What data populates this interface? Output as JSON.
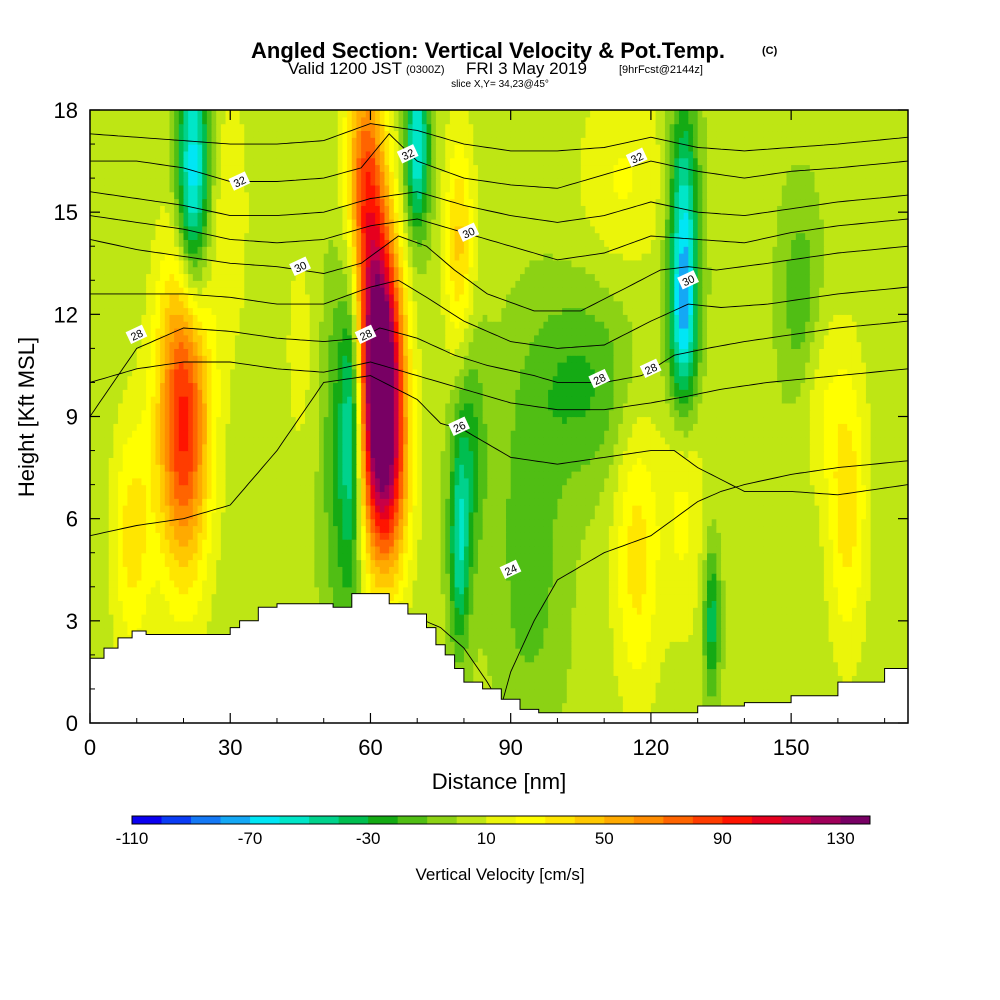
{
  "chart_data": {
    "type": "heatmap",
    "title": "Angled Section: Vertical Velocity & Pot.Temp.",
    "title_unit": "(C)",
    "subtitle_main_a": "Valid 1200 JST",
    "subtitle_z": "(0300Z)",
    "subtitle_main_b": "FRI 3 May 2019",
    "subtitle_fcst": "[9hrFcst@2144z]",
    "slice": "slice X,Y= 34,23@45°",
    "xlabel": "Distance [nm]",
    "ylabel": "Height [Kft MSL]",
    "xlim": [
      0,
      175
    ],
    "ylim": [
      0,
      18
    ],
    "x_ticks": [
      "0",
      "30",
      "60",
      "90",
      "120",
      "150"
    ],
    "x_tick_values": [
      0,
      30,
      60,
      90,
      120,
      150
    ],
    "y_ticks": [
      "0",
      "3",
      "6",
      "9",
      "12",
      "15",
      "18"
    ],
    "y_tick_values": [
      0,
      3,
      6,
      9,
      12,
      15,
      18
    ],
    "colorbar": {
      "label": "Vertical Velocity [cm/s]",
      "levels": [
        -110,
        -100,
        -90,
        -80,
        -70,
        -60,
        -50,
        -40,
        -30,
        -20,
        -10,
        0,
        10,
        20,
        30,
        40,
        50,
        60,
        70,
        80,
        90,
        100,
        110,
        120,
        130,
        140
      ],
      "tick_labels": [
        "-110",
        "-70",
        "-30",
        "10",
        "50",
        "90",
        "130"
      ],
      "tick_values": [
        -110,
        -70,
        -30,
        10,
        50,
        90,
        130
      ],
      "colors": [
        "#0a00f0",
        "#0a3cf5",
        "#1478f5",
        "#14a8f5",
        "#00e6f5",
        "#00e6c8",
        "#00d28c",
        "#00be50",
        "#14aa14",
        "#50be14",
        "#8cd214",
        "#bee614",
        "#ebf50a",
        "#ffff00",
        "#ffe600",
        "#ffc800",
        "#ffaa00",
        "#ff8c00",
        "#ff6400",
        "#ff3c00",
        "#ff1400",
        "#e6001e",
        "#c80046",
        "#a0005a",
        "#780064"
      ]
    },
    "velocity_features": [
      {
        "x": 20,
        "z": 9.0,
        "peak": 92,
        "sx": 4.0,
        "sz": 3.3
      },
      {
        "x": 9,
        "z": 5.5,
        "peak": 32,
        "sx": 3.0,
        "sz": 2.5
      },
      {
        "x": 30,
        "z": 15.0,
        "peak": 14,
        "sx": 3.0,
        "sz": 3.0
      },
      {
        "x": 62,
        "z": 11.0,
        "peak": 132,
        "sx": 3.2,
        "sz": 2.6
      },
      {
        "x": 63,
        "z": 7.5,
        "peak": 95,
        "sx": 3.5,
        "sz": 2.5
      },
      {
        "x": 59,
        "z": 16.0,
        "peak": 75,
        "sx": 3.0,
        "sz": 2.5
      },
      {
        "x": 79,
        "z": 14.0,
        "peak": 40,
        "sx": 2.2,
        "sz": 2.4
      },
      {
        "x": 114,
        "z": 16.0,
        "peak": 18,
        "sx": 7.0,
        "sz": 2.0
      },
      {
        "x": 117,
        "z": 5.0,
        "peak": 32,
        "sx": 3.5,
        "sz": 3.0
      },
      {
        "x": 127,
        "z": 7.0,
        "peak": 22,
        "sx": 3.0,
        "sz": 3.0
      },
      {
        "x": 162,
        "z": 6.5,
        "peak": 34,
        "sx": 3.0,
        "sz": 3.0
      },
      {
        "x": 156,
        "z": 9.5,
        "peak": 14,
        "sx": 3.0,
        "sz": 2.0
      },
      {
        "x": 45,
        "z": 11.0,
        "peak": 10,
        "sx": 3.0,
        "sz": 3.0
      },
      {
        "x": 22,
        "z": 16.0,
        "peak": -75,
        "sx": 2.4,
        "sz": 2.6
      },
      {
        "x": 54,
        "z": 8.0,
        "peak": -30,
        "sx": 3.0,
        "sz": 4.0
      },
      {
        "x": 56,
        "z": 9.0,
        "peak": -45,
        "sx": 1.5,
        "sz": 3.0
      },
      {
        "x": 70,
        "z": 17.0,
        "peak": -65,
        "sx": 1.8,
        "sz": 1.8
      },
      {
        "x": 79,
        "z": 5.0,
        "peak": -45,
        "sx": 1.5,
        "sz": 2.0
      },
      {
        "x": 81,
        "z": 8.0,
        "peak": -30,
        "sx": 2.5,
        "sz": 2.5
      },
      {
        "x": 94,
        "z": 5.0,
        "peak": -20,
        "sx": 5.0,
        "sz": 3.5
      },
      {
        "x": 105,
        "z": 10.0,
        "peak": -25,
        "sx": 8.0,
        "sz": 2.0
      },
      {
        "x": 127,
        "z": 12.0,
        "peak": -80,
        "sx": 2.2,
        "sz": 2.2
      },
      {
        "x": 127,
        "z": 16.0,
        "peak": -40,
        "sx": 2.2,
        "sz": 2.0
      },
      {
        "x": 133,
        "z": 3.0,
        "peak": -40,
        "sx": 1.2,
        "sz": 1.5
      },
      {
        "x": 152,
        "z": 12.5,
        "peak": -22,
        "sx": 3.0,
        "sz": 2.0
      }
    ],
    "terrain": {
      "x": [
        0,
        3,
        6,
        9,
        12,
        16,
        20,
        24,
        28,
        30,
        32,
        36,
        40,
        44,
        48,
        52,
        56,
        60,
        64,
        68,
        72,
        74,
        76,
        78,
        80,
        84,
        88,
        92,
        96,
        100,
        110,
        120,
        130,
        140,
        150,
        160,
        170,
        175
      ],
      "z": [
        1.9,
        2.2,
        2.5,
        2.7,
        2.6,
        2.6,
        2.6,
        2.6,
        2.6,
        2.8,
        3.0,
        3.4,
        3.5,
        3.5,
        3.5,
        3.4,
        3.8,
        3.8,
        3.5,
        3.2,
        2.8,
        2.3,
        2.0,
        1.6,
        1.2,
        1.0,
        0.7,
        0.4,
        0.3,
        0.3,
        0.3,
        0.3,
        0.5,
        0.6,
        0.8,
        1.2,
        1.6,
        1.6
      ]
    },
    "theta_contours": [
      {
        "label": "24",
        "x": [
          0,
          10,
          20,
          30,
          40,
          50,
          60,
          70,
          75,
          80,
          85,
          88,
          90,
          95,
          100,
          110,
          120,
          125,
          130,
          135,
          140,
          150,
          160,
          175
        ],
        "z": [
          1.5,
          2.0,
          2.3,
          2.6,
          2.8,
          3.0,
          3.2,
          3.1,
          2.8,
          2.2,
          1.2,
          0.5,
          1.5,
          3.0,
          4.2,
          5.0,
          5.5,
          6.0,
          6.5,
          6.8,
          7.0,
          7.3,
          7.5,
          7.7
        ],
        "lx": [
          90
        ],
        "lz": [
          4.5
        ]
      },
      {
        "label": "26",
        "x": [
          0,
          10,
          20,
          30,
          40,
          50,
          60,
          70,
          75,
          80,
          85,
          90,
          100,
          110,
          120,
          125,
          130,
          140,
          150,
          160,
          175
        ],
        "z": [
          5.5,
          5.8,
          6.0,
          6.4,
          8.0,
          10.0,
          10.2,
          9.5,
          8.8,
          8.6,
          8.2,
          7.8,
          7.6,
          7.8,
          8.0,
          8.0,
          7.5,
          6.8,
          6.8,
          6.7,
          7.0
        ],
        "lx": [
          79
        ],
        "lz": [
          8.7
        ]
      },
      {
        "label": "28",
        "x": [
          0,
          10,
          20,
          30,
          40,
          50,
          58,
          62,
          70,
          78,
          85,
          95,
          100,
          110,
          118,
          125,
          132,
          140,
          150,
          160,
          175
        ],
        "z": [
          9.0,
          11.0,
          11.6,
          11.5,
          11.3,
          11.2,
          11.3,
          11.6,
          11.3,
          10.8,
          10.5,
          10.2,
          10.0,
          10.0,
          10.2,
          10.8,
          11.0,
          11.2,
          11.4,
          11.6,
          11.8
        ],
        "lx": [
          10,
          59,
          109,
          120
        ],
        "lz": [
          11.4,
          11.4,
          10.1,
          10.4
        ]
      },
      {
        "label": "30",
        "x": [
          0,
          10,
          20,
          30,
          40,
          50,
          58,
          66,
          72,
          78,
          85,
          95,
          105,
          115,
          122,
          128,
          134,
          145,
          160,
          175
        ],
        "z": [
          14.2,
          13.9,
          13.7,
          13.5,
          13.4,
          13.2,
          13.5,
          14.3,
          14.0,
          13.3,
          12.6,
          12.1,
          12.1,
          12.8,
          13.3,
          13.4,
          13.3,
          13.5,
          13.8,
          14.0
        ],
        "lx": [
          45,
          81,
          128
        ],
        "lz": [
          13.4,
          14.4,
          13.0
        ]
      },
      {
        "label": "32",
        "x": [
          0,
          10,
          20,
          30,
          40,
          50,
          58,
          64,
          70,
          80,
          90,
          100,
          110,
          120,
          130,
          140,
          150,
          160,
          175
        ],
        "z": [
          16.5,
          16.5,
          16.3,
          15.9,
          15.9,
          16.0,
          16.3,
          17.3,
          16.5,
          16.0,
          15.8,
          15.7,
          16.1,
          16.5,
          16.2,
          16.0,
          16.2,
          16.3,
          16.5
        ],
        "lx": [
          32,
          68,
          117
        ],
        "lz": [
          15.9,
          16.7,
          16.6
        ]
      },
      {
        "label": "",
        "x": [
          0,
          10,
          20,
          30,
          40,
          50,
          60,
          70,
          80,
          90,
          100,
          110,
          120,
          130,
          140,
          150,
          160,
          175
        ],
        "z": [
          17.3,
          17.2,
          17.1,
          17.0,
          17.0,
          17.1,
          17.6,
          17.4,
          17.0,
          16.8,
          16.8,
          16.9,
          17.2,
          16.9,
          16.8,
          16.9,
          17.0,
          17.2
        ],
        "lx": [],
        "lz": []
      },
      {
        "label": "",
        "x": [
          0,
          10,
          20,
          30,
          40,
          50,
          60,
          70,
          80,
          90,
          100,
          110,
          120,
          130,
          140,
          150,
          160,
          175
        ],
        "z": [
          15.6,
          15.4,
          15.2,
          14.9,
          14.9,
          15.0,
          15.4,
          15.6,
          15.2,
          14.9,
          14.7,
          14.9,
          15.3,
          15.0,
          14.9,
          15.1,
          15.3,
          15.5
        ],
        "lx": [],
        "lz": []
      },
      {
        "label": "",
        "x": [
          0,
          10,
          20,
          30,
          40,
          50,
          60,
          70,
          80,
          90,
          100,
          110,
          120,
          130,
          140,
          150,
          160,
          175
        ],
        "z": [
          14.9,
          14.7,
          14.5,
          14.2,
          14.1,
          14.2,
          14.6,
          14.8,
          14.4,
          14.0,
          13.6,
          13.8,
          14.3,
          14.2,
          14.1,
          14.4,
          14.6,
          14.8
        ],
        "lx": [],
        "lz": []
      },
      {
        "label": "",
        "x": [
          0,
          10,
          20,
          30,
          40,
          50,
          60,
          66,
          72,
          80,
          90,
          100,
          110,
          120,
          128,
          135,
          145,
          160,
          175
        ],
        "z": [
          12.6,
          12.6,
          12.6,
          12.5,
          12.3,
          12.3,
          12.8,
          13.0,
          12.5,
          11.8,
          11.2,
          11.0,
          11.1,
          11.8,
          12.3,
          12.2,
          12.3,
          12.6,
          12.8
        ],
        "lx": [],
        "lz": []
      },
      {
        "label": "",
        "x": [
          0,
          10,
          20,
          30,
          40,
          50,
          60,
          70,
          80,
          90,
          100,
          110,
          120,
          128,
          135,
          145,
          160,
          175
        ],
        "z": [
          10.0,
          10.4,
          10.6,
          10.6,
          10.4,
          10.3,
          10.6,
          10.2,
          9.8,
          9.4,
          9.2,
          9.2,
          9.4,
          9.6,
          9.8,
          10.0,
          10.2,
          10.4
        ],
        "lx": [],
        "lz": []
      }
    ]
  }
}
